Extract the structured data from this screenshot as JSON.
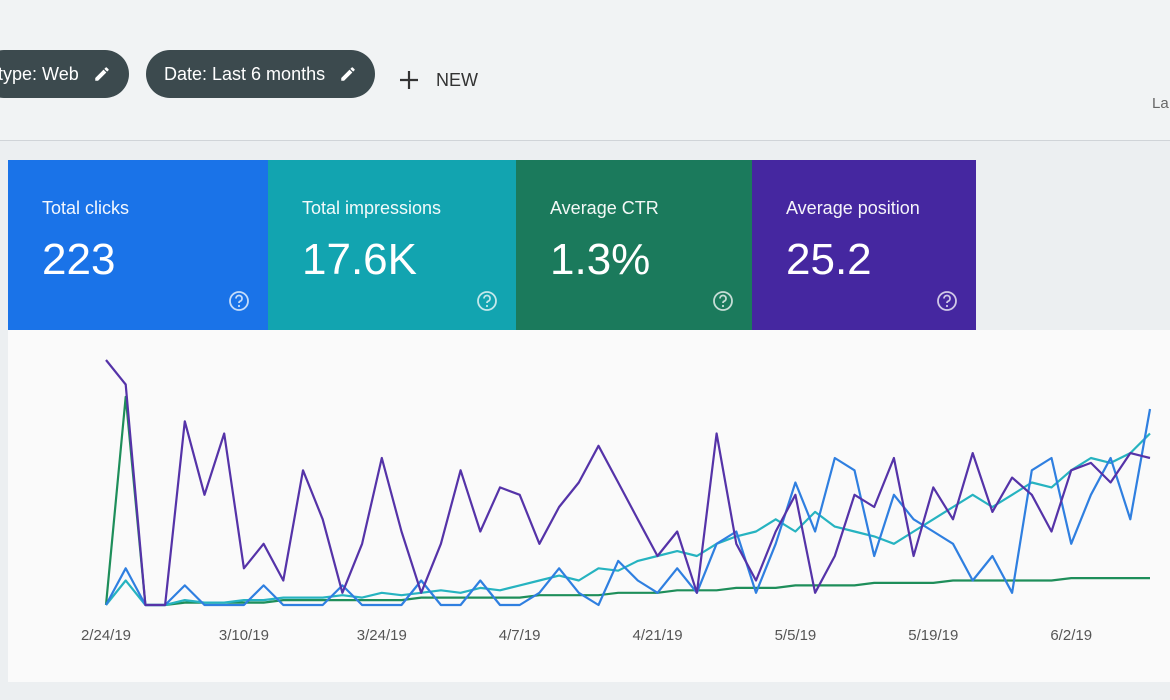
{
  "toolbar": {
    "chips": [
      "type: Web",
      "Date: Last 6 months"
    ],
    "new_button": "NEW",
    "right_text": "La"
  },
  "metrics": [
    {
      "label": "Total clicks",
      "value": "223"
    },
    {
      "label": "Total impressions",
      "value": "17.6K"
    },
    {
      "label": "Average CTR",
      "value": "1.3%"
    },
    {
      "label": "Average position",
      "value": "25.2"
    }
  ],
  "chart_data": {
    "type": "line",
    "categories": [
      "2/24/19",
      null,
      null,
      null,
      null,
      null,
      null,
      "3/10/19",
      null,
      null,
      null,
      null,
      null,
      null,
      "3/24/19",
      null,
      null,
      null,
      null,
      null,
      null,
      "4/7/19",
      null,
      null,
      null,
      null,
      null,
      null,
      "4/21/19",
      null,
      null,
      null,
      null,
      null,
      null,
      "5/5/19",
      null,
      null,
      null,
      null,
      null,
      null,
      "5/19/19",
      null,
      null,
      null,
      null,
      null,
      null,
      "6/2/19",
      null,
      null,
      null,
      null
    ],
    "ylim": [
      0,
      100
    ],
    "series": [
      {
        "color": "#1e8e5a",
        "values": [
          0,
          85,
          0,
          0,
          1,
          1,
          1,
          1,
          1,
          2,
          2,
          2,
          2,
          2,
          2,
          2,
          3,
          3,
          3,
          3,
          3,
          3,
          4,
          4,
          4,
          4,
          5,
          5,
          5,
          6,
          6,
          6,
          7,
          7,
          7,
          8,
          8,
          8,
          8,
          9,
          9,
          9,
          9,
          10,
          10,
          10,
          10,
          10,
          10,
          11,
          11,
          11,
          11,
          11
        ]
      },
      {
        "color": "#26b3c0",
        "values": [
          0,
          10,
          0,
          0,
          2,
          1,
          1,
          2,
          2,
          3,
          3,
          3,
          4,
          3,
          5,
          4,
          5,
          6,
          5,
          7,
          6,
          8,
          10,
          12,
          10,
          15,
          14,
          18,
          20,
          22,
          20,
          25,
          28,
          30,
          35,
          30,
          38,
          32,
          30,
          28,
          25,
          30,
          35,
          40,
          45,
          40,
          45,
          50,
          48,
          55,
          60,
          58,
          62,
          70
        ]
      },
      {
        "color": "#2f7fe0",
        "values": [
          0,
          15,
          0,
          0,
          8,
          0,
          0,
          0,
          8,
          0,
          0,
          0,
          8,
          0,
          0,
          0,
          10,
          0,
          0,
          10,
          0,
          0,
          5,
          15,
          5,
          0,
          18,
          10,
          5,
          15,
          5,
          25,
          30,
          5,
          25,
          50,
          30,
          60,
          55,
          20,
          45,
          35,
          30,
          25,
          10,
          20,
          5,
          55,
          60,
          25,
          45,
          60,
          35,
          80
        ]
      },
      {
        "color": "#5533a8",
        "values": [
          100,
          90,
          0,
          0,
          75,
          45,
          70,
          15,
          25,
          10,
          55,
          35,
          5,
          25,
          60,
          30,
          5,
          25,
          55,
          30,
          48,
          45,
          25,
          40,
          50,
          65,
          50,
          35,
          20,
          30,
          5,
          70,
          25,
          10,
          30,
          45,
          5,
          20,
          45,
          40,
          60,
          20,
          48,
          35,
          62,
          38,
          52,
          45,
          30,
          55,
          58,
          50,
          62,
          60
        ]
      }
    ]
  }
}
